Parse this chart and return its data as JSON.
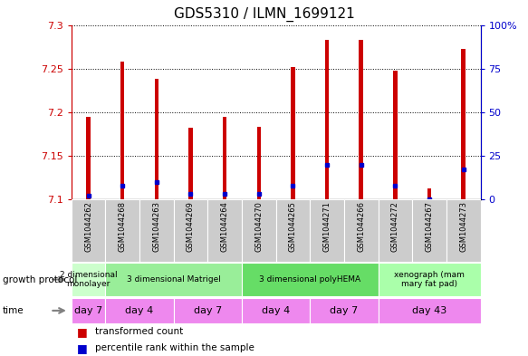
{
  "title": "GDS5310 / ILMN_1699121",
  "samples": [
    "GSM1044262",
    "GSM1044268",
    "GSM1044263",
    "GSM1044269",
    "GSM1044264",
    "GSM1044270",
    "GSM1044265",
    "GSM1044271",
    "GSM1044266",
    "GSM1044272",
    "GSM1044267",
    "GSM1044273"
  ],
  "transformed_count": [
    7.195,
    7.258,
    7.238,
    7.182,
    7.195,
    7.183,
    7.252,
    7.283,
    7.283,
    7.248,
    7.113,
    7.273
  ],
  "percentile_rank": [
    2,
    8,
    10,
    3,
    3,
    3,
    8,
    20,
    20,
    8,
    0,
    17
  ],
  "ylim_left": [
    7.1,
    7.3
  ],
  "ylim_right": [
    0,
    100
  ],
  "yticks_left": [
    7.1,
    7.15,
    7.2,
    7.25,
    7.3
  ],
  "yticks_right": [
    0,
    25,
    50,
    75,
    100
  ],
  "bar_color": "#cc0000",
  "dot_color": "#0000cc",
  "bar_bottom": 7.1,
  "protocol_groups": [
    {
      "label": "2 dimensional\nmonolayer",
      "start": 0,
      "end": 1,
      "color": "#ccffcc"
    },
    {
      "label": "3 dimensional Matrigel",
      "start": 1,
      "end": 5,
      "color": "#99ee99"
    },
    {
      "label": "3 dimensional polyHEMA",
      "start": 5,
      "end": 9,
      "color": "#66dd66"
    },
    {
      "label": "xenograph (mam\nmary fat pad)",
      "start": 9,
      "end": 12,
      "color": "#aaffaa"
    }
  ],
  "time_groups": [
    {
      "label": "day 7",
      "start": 0,
      "end": 1
    },
    {
      "label": "day 4",
      "start": 1,
      "end": 3
    },
    {
      "label": "day 7",
      "start": 3,
      "end": 5
    },
    {
      "label": "day 4",
      "start": 5,
      "end": 7
    },
    {
      "label": "day 7",
      "start": 7,
      "end": 9
    },
    {
      "label": "day 43",
      "start": 9,
      "end": 12
    }
  ],
  "time_color": "#ee88ee",
  "left_axis_color": "#cc0000",
  "right_axis_color": "#0000cc",
  "bg_color": "#ffffff",
  "grid_color": "#000000",
  "bar_width": 0.12
}
